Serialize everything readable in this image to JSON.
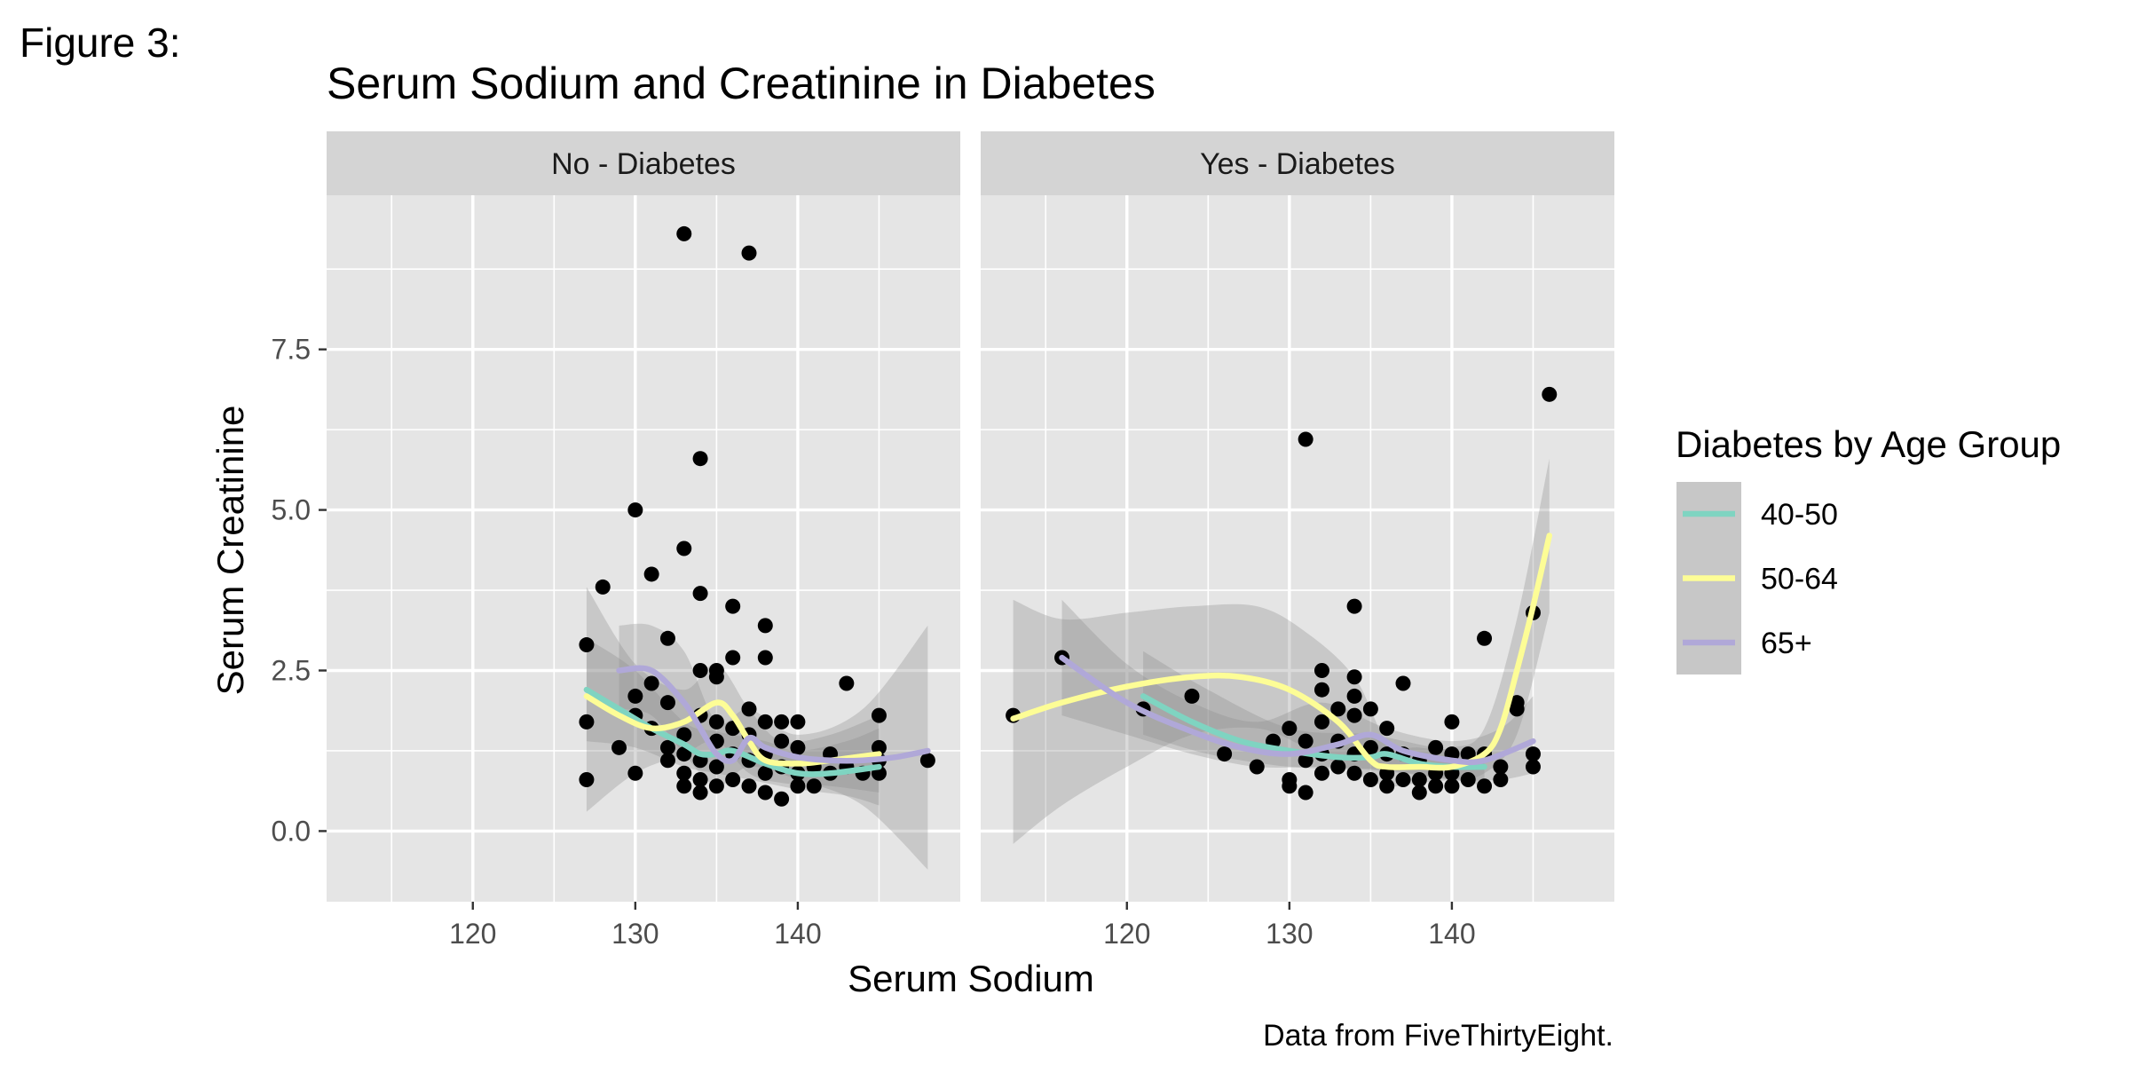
{
  "figure_label": "Figure 3:",
  "caption": "Data from FiveThirtyEight.",
  "chart_data": {
    "type": "scatter",
    "title": "Serum Sodium and Creatinine in Diabetes",
    "xlabel": "Serum Sodium",
    "ylabel": "Serum Creatinine",
    "xlim": [
      111,
      150
    ],
    "ylim": [
      -1.1,
      9.9
    ],
    "x_ticks": [
      120,
      130,
      140
    ],
    "y_ticks": [
      0.0,
      2.5,
      5.0,
      7.5
    ],
    "x_tick_labels": [
      "120",
      "130",
      "140"
    ],
    "y_tick_labels": [
      "0.0",
      "2.5",
      "5.0",
      "7.5"
    ],
    "grid": true,
    "legend": {
      "title": "Diabetes by Age Group",
      "placement": "right",
      "entries": [
        {
          "label": "40-50",
          "color": "#7fd4c1"
        },
        {
          "label": "50-64",
          "color": "#fdfd96"
        },
        {
          "label": "65+",
          "color": "#b0a8d8"
        }
      ]
    },
    "colors": {
      "panel_bg": "#e5e5e5",
      "strip_bg": "#d4d4d4",
      "grid": "#ffffff",
      "point": "#000000",
      "band": "#8c8c8c"
    },
    "panels": [
      {
        "strip": "No - Diabetes",
        "points": [
          [
            127,
            2.9
          ],
          [
            127,
            1.7
          ],
          [
            127,
            0.8
          ],
          [
            128,
            3.8
          ],
          [
            129,
            1.3
          ],
          [
            130,
            5.0
          ],
          [
            130,
            2.1
          ],
          [
            130,
            1.8
          ],
          [
            130,
            0.9
          ],
          [
            131,
            4.0
          ],
          [
            131,
            2.3
          ],
          [
            131,
            1.6
          ],
          [
            132,
            3.0
          ],
          [
            132,
            2.0
          ],
          [
            132,
            1.3
          ],
          [
            132,
            1.1
          ],
          [
            133,
            9.3
          ],
          [
            133,
            4.4
          ],
          [
            133,
            1.5
          ],
          [
            133,
            1.2
          ],
          [
            133,
            0.9
          ],
          [
            133,
            0.7
          ],
          [
            134,
            5.8
          ],
          [
            134,
            3.7
          ],
          [
            134,
            2.5
          ],
          [
            134,
            1.8
          ],
          [
            134,
            1.1
          ],
          [
            134,
            0.8
          ],
          [
            134,
            0.6
          ],
          [
            135,
            2.5
          ],
          [
            135,
            2.4
          ],
          [
            135,
            1.7
          ],
          [
            135,
            1.4
          ],
          [
            135,
            1.0
          ],
          [
            135,
            0.7
          ],
          [
            136,
            3.5
          ],
          [
            136,
            2.7
          ],
          [
            136,
            1.6
          ],
          [
            136,
            1.2
          ],
          [
            136,
            0.8
          ],
          [
            137,
            9.0
          ],
          [
            137,
            1.9
          ],
          [
            137,
            1.5
          ],
          [
            137,
            1.1
          ],
          [
            137,
            0.7
          ],
          [
            138,
            3.2
          ],
          [
            138,
            2.7
          ],
          [
            138,
            1.7
          ],
          [
            138,
            1.2
          ],
          [
            138,
            0.9
          ],
          [
            138,
            0.6
          ],
          [
            139,
            1.7
          ],
          [
            139,
            1.4
          ],
          [
            139,
            1.0
          ],
          [
            139,
            0.5
          ],
          [
            140,
            1.7
          ],
          [
            140,
            1.3
          ],
          [
            140,
            0.9
          ],
          [
            140,
            0.7
          ],
          [
            141,
            1.0
          ],
          [
            141,
            0.7
          ],
          [
            142,
            1.2
          ],
          [
            142,
            0.9
          ],
          [
            143,
            2.3
          ],
          [
            143,
            1.0
          ],
          [
            144,
            0.9
          ],
          [
            145,
            1.8
          ],
          [
            145,
            1.3
          ],
          [
            145,
            1.1
          ],
          [
            145,
            0.9
          ],
          [
            148,
            1.1
          ]
        ],
        "series": [
          {
            "name": "40-50",
            "x": [
              127,
              129,
              131,
              133,
              134,
              135,
              136,
              138,
              140,
              142,
              145
            ],
            "y": [
              2.2,
              1.9,
              1.6,
              1.35,
              1.2,
              1.2,
              1.25,
              1.05,
              0.9,
              0.9,
              1.0
            ]
          },
          {
            "name": "50-64",
            "x": [
              127,
              129,
              131,
              133,
              135,
              136,
              137,
              138,
              140,
              142,
              145
            ],
            "y": [
              2.1,
              1.8,
              1.6,
              1.7,
              2.0,
              1.8,
              1.4,
              1.1,
              1.05,
              1.1,
              1.2
            ]
          },
          {
            "name": "65+",
            "x": [
              129,
              131,
              133,
              134,
              135,
              136,
              137,
              138,
              140,
              142,
              144,
              146,
              148
            ],
            "y": [
              2.5,
              2.5,
              2.0,
              1.6,
              1.2,
              1.1,
              1.45,
              1.3,
              1.15,
              1.1,
              1.1,
              1.15,
              1.25
            ]
          }
        ],
        "bands": [
          {
            "name": "40-50",
            "x": [
              127,
              130,
              133,
              135,
              138,
              140,
              143,
              145
            ],
            "lo": [
              1.4,
              1.3,
              1.0,
              0.9,
              0.75,
              0.65,
              0.55,
              0.4
            ],
            "hi": [
              3.0,
              2.5,
              1.7,
              1.55,
              1.4,
              1.25,
              1.4,
              1.6
            ]
          },
          {
            "name": "50-64",
            "x": [
              127,
              130,
              133,
              135,
              137,
              139,
              142,
              145
            ],
            "lo": [
              0.3,
              0.9,
              1.2,
              1.4,
              0.9,
              0.75,
              0.7,
              0.6
            ],
            "hi": [
              3.8,
              2.6,
              2.2,
              2.6,
              1.9,
              1.4,
              1.5,
              1.8
            ]
          },
          {
            "name": "65+",
            "x": [
              129,
              131,
              133,
              135,
              137,
              140,
              144,
              148
            ],
            "lo": [
              1.9,
              1.8,
              1.2,
              0.7,
              1.0,
              0.8,
              0.4,
              -0.6
            ],
            "hi": [
              3.2,
              3.2,
              2.8,
              1.7,
              1.9,
              1.5,
              1.9,
              3.2
            ]
          }
        ]
      },
      {
        "strip": "Yes - Diabetes",
        "points": [
          [
            113,
            1.8
          ],
          [
            116,
            2.7
          ],
          [
            121,
            1.9
          ],
          [
            124,
            2.1
          ],
          [
            126,
            1.2
          ],
          [
            128,
            1.0
          ],
          [
            129,
            1.4
          ],
          [
            130,
            1.6
          ],
          [
            130,
            0.8
          ],
          [
            130,
            0.7
          ],
          [
            131,
            6.1
          ],
          [
            131,
            1.4
          ],
          [
            131,
            1.1
          ],
          [
            131,
            0.6
          ],
          [
            132,
            2.5
          ],
          [
            132,
            2.2
          ],
          [
            132,
            1.7
          ],
          [
            132,
            1.2
          ],
          [
            132,
            0.9
          ],
          [
            133,
            1.9
          ],
          [
            133,
            1.4
          ],
          [
            133,
            1.0
          ],
          [
            134,
            3.5
          ],
          [
            134,
            2.4
          ],
          [
            134,
            2.1
          ],
          [
            134,
            1.8
          ],
          [
            134,
            1.2
          ],
          [
            134,
            0.9
          ],
          [
            135,
            1.9
          ],
          [
            135,
            1.3
          ],
          [
            135,
            0.8
          ],
          [
            136,
            1.6
          ],
          [
            136,
            1.2
          ],
          [
            136,
            0.9
          ],
          [
            136,
            0.7
          ],
          [
            137,
            2.3
          ],
          [
            137,
            1.2
          ],
          [
            137,
            0.8
          ],
          [
            138,
            1.1
          ],
          [
            138,
            0.8
          ],
          [
            138,
            0.6
          ],
          [
            139,
            1.3
          ],
          [
            139,
            0.9
          ],
          [
            139,
            0.7
          ],
          [
            140,
            1.7
          ],
          [
            140,
            1.2
          ],
          [
            140,
            0.9
          ],
          [
            140,
            0.7
          ],
          [
            141,
            1.2
          ],
          [
            141,
            0.8
          ],
          [
            142,
            3.0
          ],
          [
            142,
            1.2
          ],
          [
            142,
            0.7
          ],
          [
            143,
            1.0
          ],
          [
            143,
            0.8
          ],
          [
            144,
            2.0
          ],
          [
            144,
            1.9
          ],
          [
            145,
            3.4
          ],
          [
            145,
            1.2
          ],
          [
            145,
            1.0
          ],
          [
            146,
            6.8
          ]
        ],
        "series": [
          {
            "name": "40-50",
            "x": [
              121,
              124,
              127,
              130,
              133,
              135,
              136,
              138,
              140,
              142
            ],
            "y": [
              2.1,
              1.7,
              1.4,
              1.25,
              1.15,
              1.15,
              1.2,
              1.05,
              1.0,
              1.0
            ]
          },
          {
            "name": "50-64",
            "x": [
              113,
              116,
              120,
              124,
              127,
              130,
              133,
              135,
              136,
              138,
              140,
              142,
              143,
              144,
              145,
              146
            ],
            "y": [
              1.75,
              2.0,
              2.25,
              2.4,
              2.4,
              2.2,
              1.7,
              1.1,
              1.0,
              1.0,
              1.0,
              1.2,
              1.6,
              2.5,
              3.5,
              4.6
            ]
          },
          {
            "name": "65+",
            "x": [
              116,
              120,
              124,
              127,
              130,
              133,
              135,
              137,
              140,
              142,
              145
            ],
            "y": [
              2.7,
              2.0,
              1.55,
              1.3,
              1.2,
              1.35,
              1.5,
              1.25,
              1.1,
              1.1,
              1.4
            ]
          }
        ],
        "bands": [
          {
            "name": "40-50",
            "x": [
              121,
              125,
              130,
              135,
              140,
              142
            ],
            "lo": [
              1.5,
              1.2,
              1.0,
              0.95,
              0.8,
              0.7
            ],
            "hi": [
              2.8,
              2.2,
              1.6,
              1.5,
              1.25,
              1.3
            ]
          },
          {
            "name": "50-64",
            "x": [
              113,
              116,
              120,
              124,
              128,
              131,
              134,
              136,
              138,
              140,
              142,
              144,
              146
            ],
            "lo": [
              -0.2,
              0.4,
              1.0,
              1.5,
              1.6,
              1.3,
              0.9,
              0.7,
              0.75,
              0.8,
              0.9,
              1.5,
              3.4
            ],
            "hi": [
              3.6,
              3.3,
              3.4,
              3.5,
              3.5,
              3.1,
              2.4,
              1.4,
              1.3,
              1.3,
              1.6,
              3.3,
              5.8
            ]
          },
          {
            "name": "65+",
            "x": [
              116,
              120,
              124,
              128,
              132,
              136,
              140,
              143,
              145
            ],
            "lo": [
              1.8,
              1.5,
              1.2,
              1.0,
              1.0,
              0.95,
              0.8,
              0.8,
              0.9
            ],
            "hi": [
              3.6,
              2.6,
              2.0,
              1.7,
              2.0,
              1.6,
              1.4,
              1.6,
              2.1
            ]
          }
        ]
      }
    ]
  }
}
